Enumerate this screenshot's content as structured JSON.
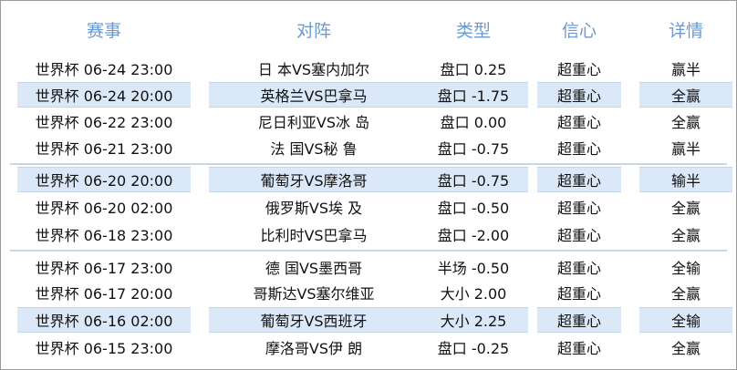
{
  "header": {
    "event": "赛事",
    "match": "对阵",
    "type": "类型",
    "confidence": "信心",
    "detail": "详情"
  },
  "rows": [
    {
      "event": "世界杯 06-24 23:00",
      "match": "日 本VS塞内加尔",
      "type": "盘口 0.25",
      "confidence": "超重心",
      "result": "赢半",
      "highlighted": false
    },
    {
      "event": "世界杯 06-24 20:00",
      "match": "英格兰VS巴拿马",
      "type": "盘口 -1.75",
      "confidence": "超重心",
      "result": "全赢",
      "highlighted": true
    },
    {
      "event": "世界杯 06-22 23:00",
      "match": "尼日利亚VS冰 岛",
      "type": "盘口 0.00",
      "confidence": "超重心",
      "result": "全赢",
      "highlighted": false
    },
    {
      "event": "世界杯 06-21 23:00",
      "match": "法 国VS秘 鲁",
      "type": "盘口 -0.75",
      "confidence": "超重心",
      "result": "赢半",
      "highlighted": false
    },
    {
      "event": "世界杯 06-20 20:00",
      "match": "葡萄牙VS摩洛哥",
      "type": "盘口 -0.75",
      "confidence": "超重心",
      "result": "输半",
      "highlighted": true
    },
    {
      "event": "世界杯 06-20 02:00",
      "match": "俄罗斯VS埃 及",
      "type": "盘口 -0.50",
      "confidence": "超重心",
      "result": "全赢",
      "highlighted": false
    },
    {
      "event": "世界杯 06-18 23:00",
      "match": "比利时VS巴拿马",
      "type": "盘口 -2.00",
      "confidence": "超重心",
      "result": "全赢",
      "highlighted": false
    },
    {
      "event": "世界杯 06-17 23:00",
      "match": "德 国VS墨西哥",
      "type": "半场 -0.50",
      "confidence": "超重心",
      "result": "全输",
      "highlighted": false
    },
    {
      "event": "世界杯 06-17 20:00",
      "match": "哥斯达VS塞尔维亚",
      "type": "大小 2.00",
      "confidence": "超重心",
      "result": "全赢",
      "highlighted": false
    },
    {
      "event": "世界杯 06-16 02:00",
      "match": "葡萄牙VS西班牙",
      "type": "大小 2.25",
      "confidence": "超重心",
      "result": "全输",
      "highlighted": true
    },
    {
      "event": "世界杯 06-15 23:00",
      "match": "摩洛哥VS伊 朗",
      "type": "盘口 -0.25",
      "confidence": "超重心",
      "result": "全赢",
      "highlighted": false
    }
  ],
  "colors": {
    "header_text": "#6a9ad2",
    "highlight_bg": "#dbe8f8",
    "separator": "#c8d8ec"
  }
}
